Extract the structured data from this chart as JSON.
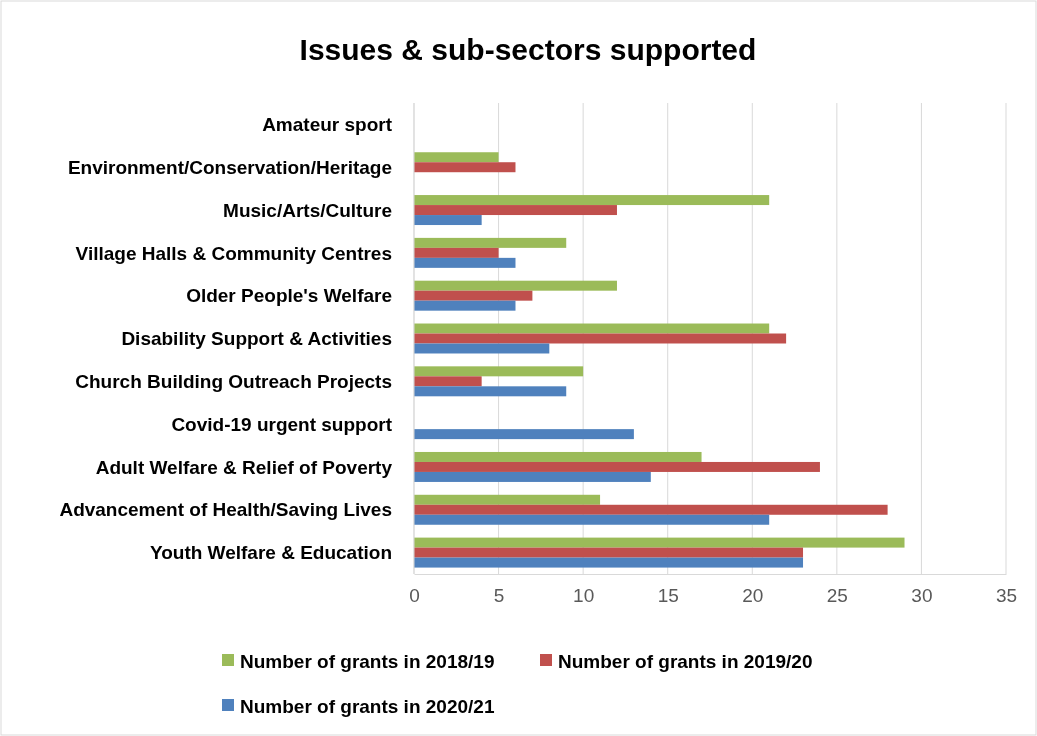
{
  "chart_data": {
    "type": "bar",
    "orientation": "horizontal",
    "title": "Issues & sub-sectors supported",
    "categories": [
      "Amateur sport",
      "Environment/Conservation/Heritage",
      "Music/Arts/Culture",
      "Village Halls & Community Centres",
      "Older People's Welfare",
      "Disability Support & Activities",
      "Church Building Outreach Projects",
      "Covid-19 urgent support",
      "Adult Welfare & Relief of Poverty",
      "Advancement of Health/Saving Lives",
      "Youth Welfare & Education"
    ],
    "series": [
      {
        "name": "Number of grants in 2018/19",
        "color": "#9bbb59",
        "values": [
          null,
          5,
          21,
          9,
          12,
          21,
          10,
          null,
          17,
          11,
          29
        ]
      },
      {
        "name": "Number of grants in 2019/20",
        "color": "#c0504d",
        "values": [
          null,
          6,
          12,
          5,
          7,
          22,
          4,
          null,
          24,
          28,
          23
        ]
      },
      {
        "name": "Number of grants in 2020/21",
        "color": "#4f81bd",
        "values": [
          null,
          null,
          4,
          6,
          6,
          8,
          9,
          13,
          14,
          21,
          23
        ]
      }
    ],
    "xlim": [
      0,
      35
    ],
    "xticks": [
      0,
      5,
      10,
      15,
      20,
      25,
      30,
      35
    ],
    "grid": "x",
    "legend": "bottom"
  }
}
